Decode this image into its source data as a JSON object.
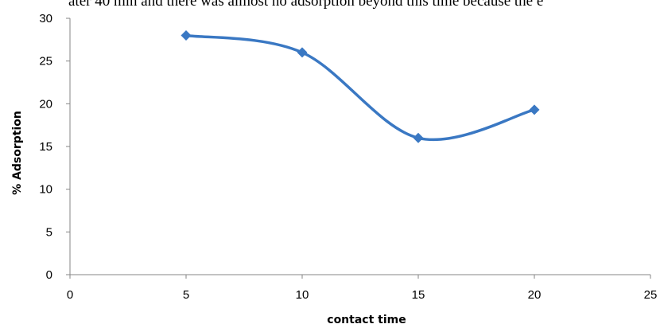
{
  "page": {
    "clipped_text": "ater 40 min and there was almost no adsorption beyond this time because the e"
  },
  "chart_data": {
    "type": "line",
    "smooth": true,
    "title": "",
    "xlabel": "contact time",
    "ylabel": "% Adsorption",
    "xlim": [
      0,
      25
    ],
    "ylim": [
      0,
      30
    ],
    "xticks": [
      0,
      5,
      10,
      15,
      20,
      25
    ],
    "yticks": [
      0,
      5,
      10,
      15,
      20,
      25,
      30
    ],
    "grid": false,
    "legend": "none",
    "series": [
      {
        "x": [
          5,
          10,
          15,
          20
        ],
        "values": [
          28,
          26,
          16,
          19.3
        ],
        "color": "#3a78c3",
        "marker": "diamond"
      }
    ]
  }
}
